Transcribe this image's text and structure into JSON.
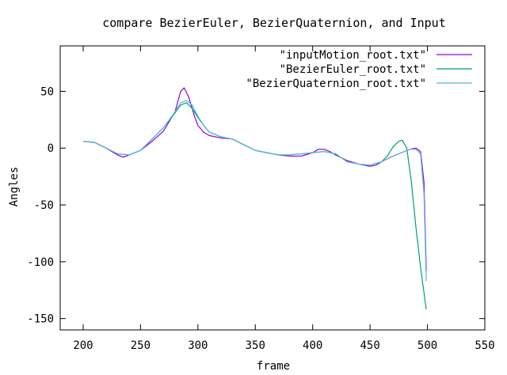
{
  "chart_data": {
    "type": "line",
    "title": "compare BezierEuler, BezierQuaternion, and Input",
    "xlabel": "frame",
    "ylabel": "Angles",
    "xlim": [
      180,
      550
    ],
    "ylim": [
      -160,
      90
    ],
    "xticks": [
      200,
      250,
      300,
      350,
      400,
      450,
      500,
      550
    ],
    "yticks": [
      50,
      0,
      -50,
      -100,
      -150
    ],
    "grid": false,
    "legend_position": "top-right",
    "series": [
      {
        "name": "\"inputMotion_root.txt\"",
        "color": "#9400d3",
        "x": [
          200,
          210,
          220,
          230,
          235,
          240,
          250,
          260,
          270,
          280,
          285,
          288,
          292,
          297,
          300,
          305,
          310,
          320,
          330,
          340,
          350,
          360,
          370,
          380,
          390,
          400,
          405,
          410,
          415,
          420,
          430,
          440,
          450,
          455,
          460,
          470,
          480,
          485,
          490,
          494,
          497,
          499
        ],
        "y": [
          6,
          5,
          0,
          -6,
          -8,
          -6,
          -2,
          6,
          15,
          32,
          50,
          53,
          45,
          28,
          20,
          14,
          11,
          9,
          8,
          3,
          -2,
          -4,
          -6,
          -7,
          -7,
          -4,
          -1,
          -1,
          -3,
          -6,
          -11,
          -14,
          -16,
          -15,
          -12,
          -7,
          -3,
          -1,
          0,
          -3,
          -30,
          -108
        ]
      },
      {
        "name": "\"BezierEuler_root.txt\"",
        "color": "#009e73",
        "x": [
          200,
          210,
          220,
          230,
          240,
          250,
          260,
          270,
          280,
          285,
          290,
          295,
          300,
          305,
          310,
          320,
          330,
          340,
          350,
          360,
          370,
          380,
          390,
          400,
          410,
          420,
          430,
          440,
          450,
          460,
          465,
          470,
          475,
          478,
          482,
          486,
          490,
          494,
          499
        ],
        "y": [
          6,
          5,
          0,
          -5,
          -6,
          -2,
          8,
          18,
          31,
          38,
          40,
          35,
          27,
          20,
          14,
          10,
          8,
          3,
          -2,
          -4,
          -6,
          -6,
          -5,
          -4,
          -3,
          -5,
          -12,
          -14,
          -15,
          -12,
          -7,
          1,
          6,
          7,
          0,
          -30,
          -70,
          -105,
          -142
        ]
      },
      {
        "name": "\"BezierQuaternion_root.txt\"",
        "color": "#56b4e9",
        "x": [
          200,
          210,
          220,
          230,
          240,
          250,
          260,
          270,
          280,
          285,
          290,
          295,
          300,
          305,
          310,
          320,
          330,
          340,
          350,
          360,
          370,
          380,
          390,
          400,
          410,
          420,
          430,
          440,
          450,
          460,
          470,
          480,
          485,
          490,
          494,
          497,
          499
        ],
        "y": [
          6,
          5,
          0,
          -5,
          -6,
          -2,
          8,
          18,
          32,
          40,
          42,
          38,
          28,
          20,
          14,
          10,
          8,
          3,
          -2,
          -4,
          -6,
          -6,
          -5,
          -4,
          -3,
          -5,
          -12,
          -14,
          -15,
          -12,
          -7,
          -3,
          -1,
          -1,
          -5,
          -40,
          -117
        ]
      }
    ]
  }
}
